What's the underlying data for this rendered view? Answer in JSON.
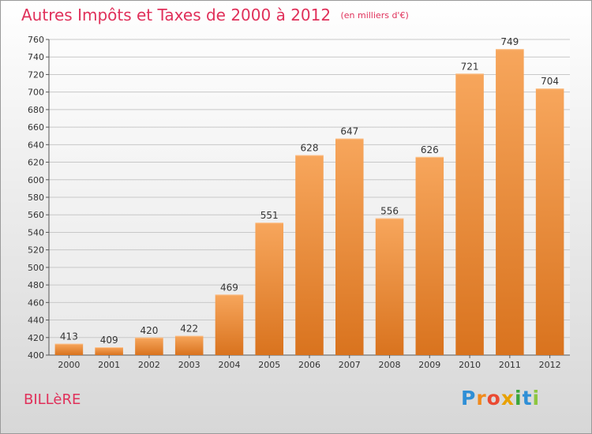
{
  "header": {
    "title": "Autres Impôts et Taxes de 2000 à 2012",
    "unit": "(en milliers d'€)"
  },
  "city": "BILLèRE",
  "logo": {
    "text": "Proxiti",
    "letter_colors": [
      "#2f8fd6",
      "#f08a1c",
      "#ea4a32",
      "#e8a100",
      "#3aa63a",
      "#2f8fd6",
      "#8dc63f"
    ]
  },
  "colors": {
    "title": "#e0305a",
    "bar_light": "#f7a65c",
    "bar_dark": "#d9731e",
    "grid": "#c8c8c8"
  },
  "chart_data": {
    "type": "bar",
    "title": "Autres Impôts et Taxes de 2000 à 2012",
    "xlabel": "",
    "ylabel": "",
    "categories": [
      "2000",
      "2001",
      "2002",
      "2003",
      "2004",
      "2005",
      "2006",
      "2007",
      "2008",
      "2009",
      "2010",
      "2011",
      "2012"
    ],
    "values": [
      413,
      409,
      420,
      422,
      469,
      551,
      628,
      647,
      556,
      626,
      721,
      749,
      704
    ],
    "ylim": [
      400,
      760
    ],
    "yticks": [
      400,
      420,
      440,
      460,
      480,
      500,
      520,
      540,
      560,
      580,
      600,
      620,
      640,
      660,
      680,
      700,
      720,
      740,
      760
    ],
    "grid": true
  }
}
